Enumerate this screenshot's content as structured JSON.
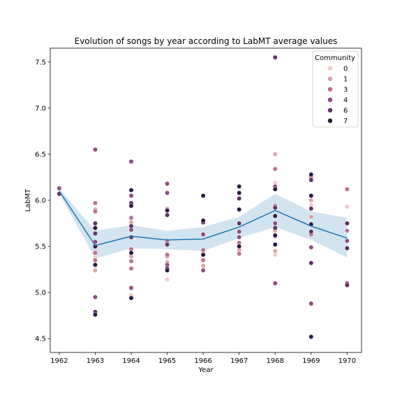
{
  "chart_data": {
    "type": "scatter",
    "title": "Evolution of songs by year according to LabMT average values",
    "xlabel": "Year",
    "ylabel": "LabMT",
    "xlim": [
      1961.75,
      1970.4
    ],
    "ylim": [
      4.35,
      7.65
    ],
    "x_ticks": [
      "1962",
      "1963",
      "1964",
      "1965",
      "1966",
      "1967",
      "1968",
      "1969",
      "1970"
    ],
    "y_ticks": [
      "4.5",
      "5.0",
      "5.5",
      "6.0",
      "6.5",
      "7.0",
      "7.5"
    ],
    "grid": false,
    "legend": {
      "title": "Community",
      "placement": "upper right",
      "entries": [
        {
          "label": "0",
          "color": "#efcdc8"
        },
        {
          "label": "1",
          "color": "#dba6a7"
        },
        {
          "label": "3",
          "color": "#b9728f"
        },
        {
          "label": "4",
          "color": "#8f4e7e"
        },
        {
          "label": "6",
          "color": "#5e3264"
        },
        {
          "label": "7",
          "color": "#2b1a3f"
        }
      ]
    },
    "mean_line": {
      "color": "#1f77b4",
      "band_color": "#1f77b4",
      "x": [
        1962,
        1963,
        1964,
        1965,
        1966,
        1967,
        1968,
        1969,
        1970
      ],
      "y": [
        6.1,
        5.51,
        5.61,
        5.57,
        5.58,
        5.71,
        5.89,
        5.72,
        5.59
      ],
      "ci_lower": [
        6.07,
        5.37,
        5.48,
        5.47,
        5.45,
        5.59,
        5.71,
        5.57,
        5.38
      ],
      "ci_upper": [
        6.13,
        5.67,
        5.73,
        5.67,
        5.71,
        5.82,
        6.07,
        5.88,
        5.81
      ]
    },
    "series": [
      {
        "name": "0",
        "points": [
          {
            "x": 1963,
            "y": 5.38
          },
          {
            "x": 1964,
            "y": 4.97
          },
          {
            "x": 1965,
            "y": 5.14
          },
          {
            "x": 1968,
            "y": 6.19
          },
          {
            "x": 1968,
            "y": 5.41
          },
          {
            "x": 1969,
            "y": 5.95
          },
          {
            "x": 1970,
            "y": 5.93
          }
        ]
      },
      {
        "name": "1",
        "points": [
          {
            "x": 1963,
            "y": 5.9
          },
          {
            "x": 1963,
            "y": 5.24
          },
          {
            "x": 1964,
            "y": 5.76
          },
          {
            "x": 1964,
            "y": 5.39
          },
          {
            "x": 1965,
            "y": 5.91
          },
          {
            "x": 1965,
            "y": 5.39
          },
          {
            "x": 1965,
            "y": 5.33
          },
          {
            "x": 1966,
            "y": 5.29
          },
          {
            "x": 1967,
            "y": 5.46
          },
          {
            "x": 1968,
            "y": 6.5
          },
          {
            "x": 1968,
            "y": 5.45
          },
          {
            "x": 1968,
            "y": 5.67
          },
          {
            "x": 1969,
            "y": 6.0
          },
          {
            "x": 1969,
            "y": 5.82
          }
        ]
      },
      {
        "name": "3",
        "points": [
          {
            "x": 1963,
            "y": 5.97
          },
          {
            "x": 1963,
            "y": 5.88
          },
          {
            "x": 1963,
            "y": 5.43
          },
          {
            "x": 1963,
            "y": 5.35
          },
          {
            "x": 1964,
            "y": 5.81
          },
          {
            "x": 1964,
            "y": 5.47
          },
          {
            "x": 1964,
            "y": 5.34
          },
          {
            "x": 1964,
            "y": 5.26
          },
          {
            "x": 1965,
            "y": 5.56
          },
          {
            "x": 1965,
            "y": 5.41
          },
          {
            "x": 1966,
            "y": 5.46
          },
          {
            "x": 1966,
            "y": 5.35
          },
          {
            "x": 1967,
            "y": 5.54
          },
          {
            "x": 1967,
            "y": 5.42
          },
          {
            "x": 1968,
            "y": 6.34
          },
          {
            "x": 1968,
            "y": 5.94
          },
          {
            "x": 1968,
            "y": 5.61
          },
          {
            "x": 1969,
            "y": 6.25
          },
          {
            "x": 1969,
            "y": 5.63
          },
          {
            "x": 1970,
            "y": 6.12
          },
          {
            "x": 1970,
            "y": 5.67
          }
        ]
      },
      {
        "name": "4",
        "points": [
          {
            "x": 1962,
            "y": 6.13
          },
          {
            "x": 1963,
            "y": 6.55
          },
          {
            "x": 1963,
            "y": 4.95
          },
          {
            "x": 1963,
            "y": 5.55
          },
          {
            "x": 1964,
            "y": 6.42
          },
          {
            "x": 1964,
            "y": 5.05
          },
          {
            "x": 1964,
            "y": 6.05
          },
          {
            "x": 1964,
            "y": 5.68
          },
          {
            "x": 1965,
            "y": 6.18
          },
          {
            "x": 1965,
            "y": 6.08
          },
          {
            "x": 1965,
            "y": 5.3
          },
          {
            "x": 1966,
            "y": 5.63
          },
          {
            "x": 1966,
            "y": 5.24
          },
          {
            "x": 1967,
            "y": 5.66
          },
          {
            "x": 1967,
            "y": 5.6
          },
          {
            "x": 1968,
            "y": 6.15
          },
          {
            "x": 1968,
            "y": 5.1
          },
          {
            "x": 1968,
            "y": 5.75
          },
          {
            "x": 1969,
            "y": 4.88
          },
          {
            "x": 1969,
            "y": 5.49
          },
          {
            "x": 1970,
            "y": 5.1
          },
          {
            "x": 1970,
            "y": 5.56
          }
        ]
      },
      {
        "name": "6",
        "points": [
          {
            "x": 1962,
            "y": 6.07
          },
          {
            "x": 1963,
            "y": 5.75
          },
          {
            "x": 1963,
            "y": 5.64
          },
          {
            "x": 1963,
            "y": 4.79
          },
          {
            "x": 1964,
            "y": 5.97
          },
          {
            "x": 1964,
            "y": 5.72
          },
          {
            "x": 1964,
            "y": 5.6
          },
          {
            "x": 1965,
            "y": 5.84
          },
          {
            "x": 1965,
            "y": 5.52
          },
          {
            "x": 1965,
            "y": 5.26
          },
          {
            "x": 1966,
            "y": 6.05
          },
          {
            "x": 1966,
            "y": 5.76
          },
          {
            "x": 1967,
            "y": 5.75
          },
          {
            "x": 1967,
            "y": 6.02
          },
          {
            "x": 1968,
            "y": 5.92
          },
          {
            "x": 1968,
            "y": 7.55
          },
          {
            "x": 1968,
            "y": 5.7
          },
          {
            "x": 1969,
            "y": 6.22
          },
          {
            "x": 1969,
            "y": 5.91
          },
          {
            "x": 1969,
            "y": 5.66
          },
          {
            "x": 1969,
            "y": 5.32
          },
          {
            "x": 1970,
            "y": 5.75
          },
          {
            "x": 1970,
            "y": 5.48
          },
          {
            "x": 1970,
            "y": 5.08
          }
        ]
      },
      {
        "name": "7",
        "points": [
          {
            "x": 1963,
            "y": 5.7
          },
          {
            "x": 1963,
            "y": 5.5
          },
          {
            "x": 1963,
            "y": 5.3
          },
          {
            "x": 1963,
            "y": 4.76
          },
          {
            "x": 1964,
            "y": 6.11
          },
          {
            "x": 1964,
            "y": 5.94
          },
          {
            "x": 1964,
            "y": 5.43
          },
          {
            "x": 1964,
            "y": 4.94
          },
          {
            "x": 1965,
            "y": 5.89
          },
          {
            "x": 1965,
            "y": 5.24
          },
          {
            "x": 1966,
            "y": 6.05
          },
          {
            "x": 1966,
            "y": 5.78
          },
          {
            "x": 1966,
            "y": 5.41
          },
          {
            "x": 1967,
            "y": 6.15
          },
          {
            "x": 1967,
            "y": 6.08
          },
          {
            "x": 1967,
            "y": 5.9
          },
          {
            "x": 1967,
            "y": 5.5
          },
          {
            "x": 1968,
            "y": 6.12
          },
          {
            "x": 1968,
            "y": 5.83
          },
          {
            "x": 1968,
            "y": 5.62
          },
          {
            "x": 1968,
            "y": 5.52
          },
          {
            "x": 1969,
            "y": 6.28
          },
          {
            "x": 1969,
            "y": 6.05
          },
          {
            "x": 1969,
            "y": 5.74
          },
          {
            "x": 1969,
            "y": 4.52
          }
        ]
      }
    ]
  }
}
